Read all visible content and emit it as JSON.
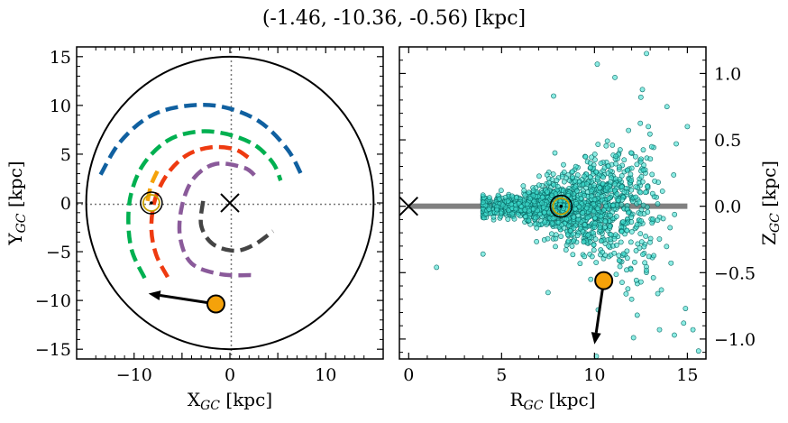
{
  "title": "(-1.46, -10.36, -0.56) [kpc]",
  "colors": {
    "blue_arm": "#1060a0",
    "green_arm": "#00b050",
    "red_arm": "#ee3a10",
    "purple_arm": "#8a5a9a",
    "orange_arm": "#f5a20a",
    "bar": "#444444",
    "star": "#f5a20a",
    "scatter_fill": "#40e0d0",
    "scatter_edge": "#0a6a66",
    "sun_outline": "#c8a000",
    "disk_line": "#808080"
  },
  "chart_data": [
    {
      "type": "line",
      "xlabel": "X_GC [kpc]",
      "ylabel": "Y_GC [kpc]",
      "xlim": [
        -16,
        16
      ],
      "ylim": [
        -16,
        16
      ],
      "xticks": [
        "−10",
        "0",
        "10"
      ],
      "yticks": [
        "−15",
        "−10",
        "−5",
        "0",
        "5",
        "10",
        "15"
      ],
      "boundary_circle_radius": 15,
      "galactic_center": [
        0,
        0
      ],
      "sun_position": [
        -8.2,
        0
      ],
      "star_position": [
        -1.46,
        -10.36
      ],
      "velocity_arrow": {
        "from": [
          -1.46,
          -10.36
        ],
        "to": [
          -8.5,
          -9.3
        ]
      },
      "series": [
        {
          "color": "blue_arm",
          "points": [
            [
              -13.5,
              2.9
            ],
            [
              -11.5,
              6.2
            ],
            [
              -8.5,
              8.8
            ],
            [
              -5,
              9.9
            ],
            [
              -1,
              9.9
            ],
            [
              3,
              8.4
            ],
            [
              6,
              5.5
            ],
            [
              7.6,
              2.6
            ]
          ]
        },
        {
          "color": "green_arm",
          "points": [
            [
              -8.9,
              -7.7
            ],
            [
              -10.2,
              -5
            ],
            [
              -10.6,
              -2
            ],
            [
              -10.3,
              1
            ],
            [
              -9,
              4
            ],
            [
              -6.5,
              6.4
            ],
            [
              -3.5,
              7.3
            ],
            [
              -0.5,
              7.1
            ],
            [
              2.5,
              6
            ],
            [
              4.5,
              4.1
            ],
            [
              5.3,
              2.3
            ]
          ]
        },
        {
          "color": "orange_arm",
          "points": [
            [
              -8.6,
              0.2
            ],
            [
              -8.2,
              1.9
            ],
            [
              -7.5,
              3.4
            ]
          ]
        },
        {
          "color": "red_arm",
          "points": [
            [
              -6.5,
              -7.6
            ],
            [
              -7.7,
              -5.3
            ],
            [
              -8.2,
              -2.6
            ],
            [
              -7.8,
              0.4
            ],
            [
              -6.5,
              3
            ],
            [
              -4.5,
              4.9
            ],
            [
              -2,
              5.7
            ],
            [
              0.5,
              5.5
            ],
            [
              2,
              4.6
            ]
          ]
        },
        {
          "color": "purple_arm",
          "points": [
            [
              2.2,
              -7.4
            ],
            [
              -1,
              -7.3
            ],
            [
              -4,
              -6.2
            ],
            [
              -5.2,
              -3.5
            ],
            [
              -5,
              -0.3
            ],
            [
              -3.8,
              2.5
            ],
            [
              -1.5,
              4
            ],
            [
              1.5,
              3.6
            ],
            [
              2.7,
              2.7
            ]
          ]
        },
        {
          "color": "bar",
          "points": [
            [
              -2.8,
              0.2
            ],
            [
              -3,
              -2.3
            ],
            [
              -1.8,
              -4.2
            ],
            [
              0.5,
              -4.9
            ],
            [
              2.5,
              -4.3
            ],
            [
              4.5,
              -2.9
            ]
          ]
        }
      ]
    },
    {
      "type": "scatter",
      "xlabel": "R_GC [kpc]",
      "ylabel": "Z_GC [kpc]",
      "xlim": [
        -0.5,
        16
      ],
      "ylim": [
        -1.15,
        1.2
      ],
      "xticks": [
        "0",
        "5",
        "10",
        "15"
      ],
      "yticks": [
        "1.0",
        "0.5",
        "0.0",
        "−0.5",
        "−1.0"
      ],
      "disk_line": {
        "x": [
          0,
          15
        ],
        "z": 0
      },
      "galactic_center": [
        0,
        0
      ],
      "sun_position": [
        8.2,
        0
      ],
      "star_position": [
        10.5,
        -0.56
      ],
      "velocity_arrow": {
        "from": [
          10.5,
          -0.56
        ],
        "to": [
          10.0,
          -1.04
        ]
      },
      "n_points": 1500,
      "outliers": [
        [
          10.15,
          1.07
        ],
        [
          12.8,
          1.15
        ],
        [
          7.8,
          0.83
        ],
        [
          11.1,
          0.97
        ],
        [
          13.9,
          0.75
        ],
        [
          15.0,
          0.6
        ],
        [
          12.9,
          0.6
        ],
        [
          14.4,
          0.47
        ],
        [
          1.5,
          -0.46
        ],
        [
          4.0,
          -0.36
        ],
        [
          7.5,
          -0.65
        ],
        [
          9.8,
          -0.55
        ],
        [
          11.7,
          -0.66
        ],
        [
          12.5,
          -0.57
        ],
        [
          12.0,
          -0.7
        ],
        [
          13.6,
          -0.63
        ],
        [
          12.3,
          -0.82
        ],
        [
          14.9,
          -0.77
        ],
        [
          13.5,
          -0.93
        ],
        [
          14.8,
          -0.88
        ],
        [
          15.3,
          -0.93
        ],
        [
          15.6,
          -1.09
        ],
        [
          14.3,
          -0.97
        ],
        [
          12.1,
          -0.99
        ],
        [
          10.1,
          -1.13
        ],
        [
          10.2,
          -0.78
        ]
      ]
    }
  ]
}
